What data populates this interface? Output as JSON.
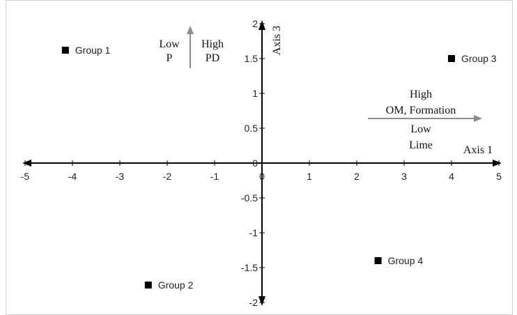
{
  "chart_data": {
    "type": "scatter",
    "xlim": [
      -5,
      5
    ],
    "ylim": [
      -2,
      2
    ],
    "x_ticks": [
      -5,
      -4,
      -3,
      -2,
      -1,
      0,
      1,
      2,
      3,
      4,
      5
    ],
    "y_ticks": [
      -2,
      -1.5,
      -1,
      -0.5,
      0,
      0.5,
      1,
      1.5,
      2
    ],
    "x_tick_labels": [
      "-5",
      "-4",
      "-3",
      "-2",
      "-1",
      "0",
      "1",
      "2",
      "3",
      "4",
      "5"
    ],
    "y_tick_labels": [
      "-2",
      "-1.5",
      "-1",
      "-0.5",
      "0",
      "0.5",
      "1",
      "1.5",
      "2"
    ],
    "xlabel": "Axis 1",
    "ylabel": "Axis 3",
    "grid": false,
    "points": [
      {
        "label": "Group 1",
        "x": -4.15,
        "y": 1.62
      },
      {
        "label": "Group 2",
        "x": -2.4,
        "y": -1.75
      },
      {
        "label": "Group 3",
        "x": 4.0,
        "y": 1.5
      },
      {
        "label": "Group 4",
        "x": 2.45,
        "y": -1.4
      }
    ],
    "annotations": {
      "vertical_arrow": {
        "left_lines": [
          "Low",
          "P"
        ],
        "right_lines": [
          "High",
          "PD"
        ]
      },
      "horizontal_arrow": {
        "top_lines": [
          "High",
          "OM, Formation"
        ],
        "bottom_lines": [
          "Low",
          "Lime"
        ]
      }
    },
    "colors": {
      "axis": "#000000",
      "marker": "#000000",
      "annotation_arrow": "#8c8c8c"
    }
  }
}
